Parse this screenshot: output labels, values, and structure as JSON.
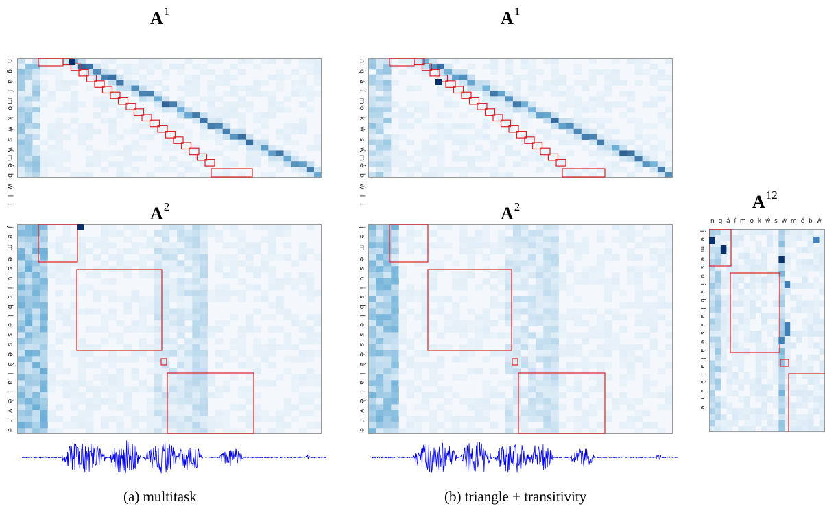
{
  "titles": {
    "a1_left": {
      "letter": "A",
      "sup": "1"
    },
    "a1_mid": {
      "letter": "A",
      "sup": "1"
    },
    "a2_left": {
      "letter": "A",
      "sup": "2"
    },
    "a2_mid": {
      "letter": "A",
      "sup": "2"
    },
    "a12": {
      "letter": "A",
      "sup": "12"
    }
  },
  "source_axis_text": "n g á í mo k ẃ s ẃmé b ẃ l i",
  "target_axis_text": "j e   m e   s u i s   b l e s s é   à   l a   l è v r e",
  "a12_top_axis_text": "n g á í m o k ẃ s ẃ m é b ẃ l i",
  "captions": {
    "a": "(a) multitask",
    "b": "(b) triangle + transitivity"
  },
  "colors": {
    "heat_low": "#f4f8fd",
    "heat_high": "#08306b",
    "box": "#e02020",
    "waveform": "#0000ee"
  }
}
